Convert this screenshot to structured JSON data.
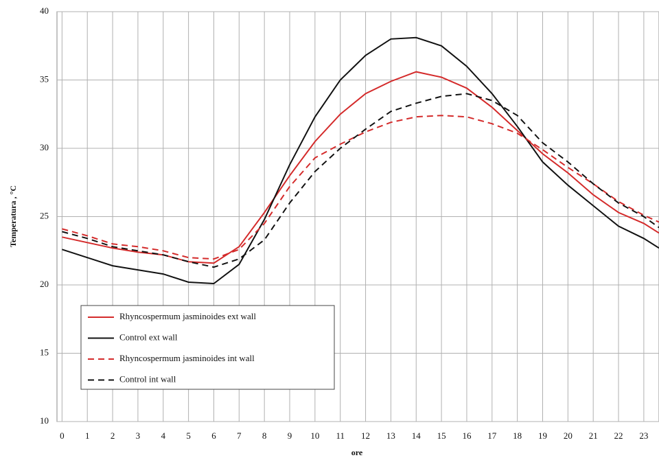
{
  "chart_data": {
    "type": "line",
    "y_label": "Temperatura , °C",
    "x_label": "ore",
    "x": [
      0,
      1,
      2,
      3,
      4,
      5,
      6,
      7,
      8,
      9,
      10,
      11,
      12,
      13,
      14,
      15,
      16,
      17,
      18,
      19,
      20,
      21,
      22,
      23,
      23.6
    ],
    "xlim": [
      -0.2,
      23.6
    ],
    "xticks": [
      0,
      1,
      2,
      3,
      4,
      5,
      6,
      7,
      8,
      9,
      10,
      11,
      12,
      13,
      14,
      15,
      16,
      17,
      18,
      19,
      20,
      21,
      22,
      23
    ],
    "ylim": [
      10,
      40
    ],
    "yticks": [
      10,
      15,
      20,
      25,
      30,
      35,
      40
    ],
    "grid": true,
    "series": [
      {
        "name": "Rhyncospermum jasminoides  ext wall",
        "color": "#d42a2a",
        "dash": false,
        "values": [
          23.5,
          23.1,
          22.7,
          22.4,
          22.2,
          21.7,
          21.6,
          22.8,
          25.3,
          28.0,
          30.5,
          32.5,
          34.0,
          34.9,
          35.6,
          35.2,
          34.4,
          33.0,
          31.3,
          29.6,
          28.2,
          26.6,
          25.3,
          24.5,
          23.8
        ]
      },
      {
        "name": "Control ext wall",
        "color": "#111111",
        "dash": false,
        "values": [
          22.6,
          22.0,
          21.4,
          21.1,
          20.8,
          20.2,
          20.1,
          21.5,
          24.8,
          28.8,
          32.3,
          35.0,
          36.8,
          38.0,
          38.1,
          37.5,
          36.0,
          34.0,
          31.6,
          29.0,
          27.3,
          25.8,
          24.3,
          23.4,
          22.7
        ]
      },
      {
        "name": "Rhyncospermum jasminoides int wall",
        "color": "#d42a2a",
        "dash": true,
        "values": [
          24.1,
          23.6,
          23.0,
          22.8,
          22.5,
          22.0,
          21.9,
          22.6,
          24.5,
          27.2,
          29.3,
          30.3,
          31.2,
          31.9,
          32.3,
          32.4,
          32.3,
          31.8,
          31.1,
          29.9,
          28.6,
          27.4,
          26.1,
          25.1,
          24.6
        ]
      },
      {
        "name": "Control int wall",
        "color": "#111111",
        "dash": true,
        "values": [
          23.9,
          23.4,
          22.8,
          22.5,
          22.2,
          21.7,
          21.3,
          21.9,
          23.3,
          26.0,
          28.3,
          30.0,
          31.4,
          32.7,
          33.3,
          33.8,
          34.0,
          33.5,
          32.4,
          30.4,
          29.0,
          27.4,
          26.0,
          25.0,
          24.2
        ]
      }
    ]
  }
}
